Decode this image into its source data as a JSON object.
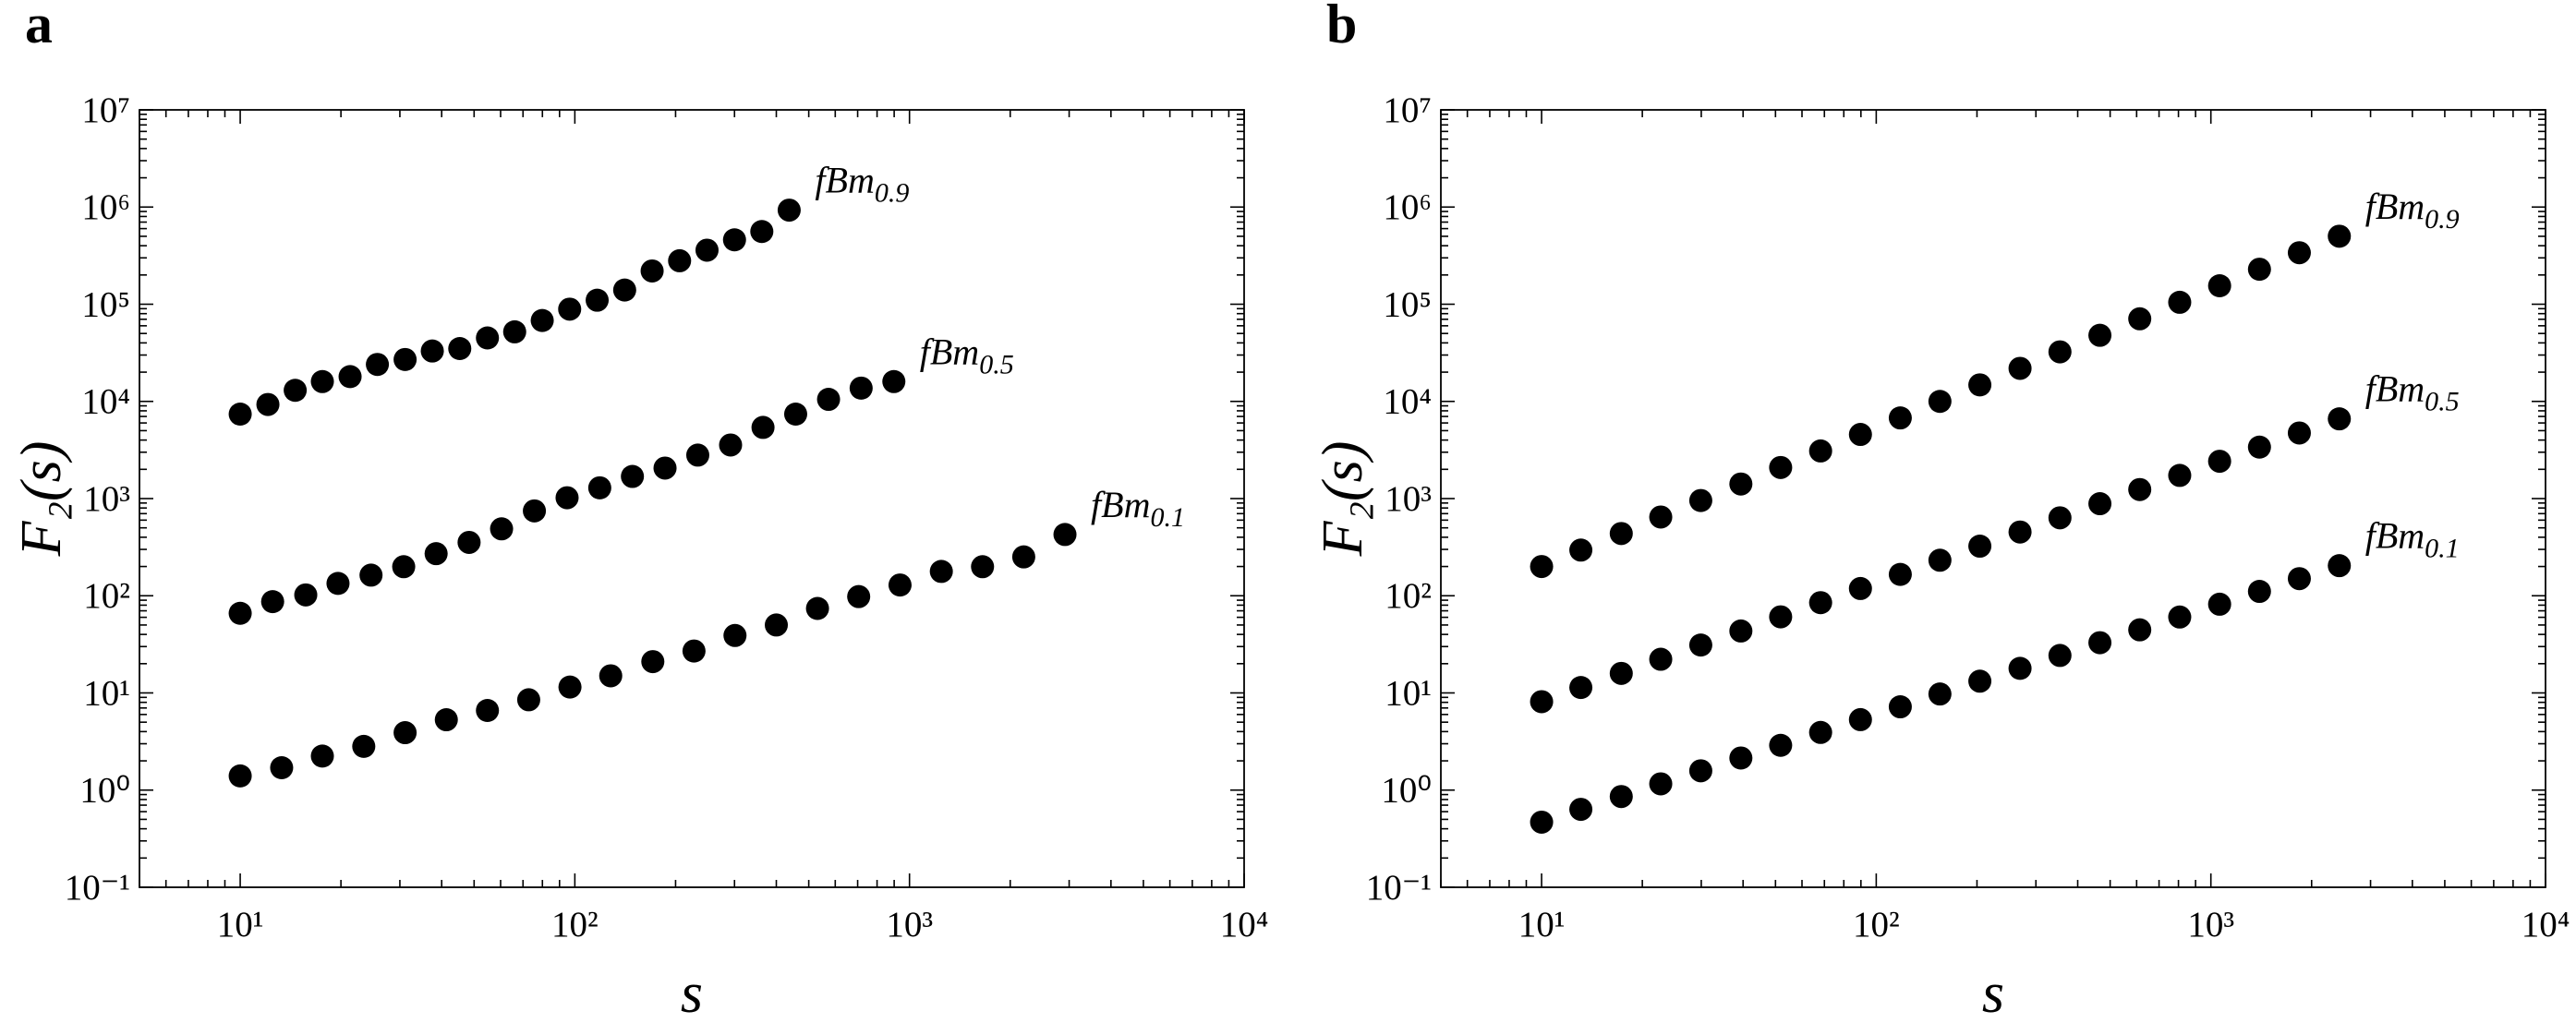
{
  "chart_data": [
    {
      "type": "scatter",
      "panel_label": "a",
      "xlabel": "s",
      "ylabel": "F₂(s)",
      "log_x": true,
      "log_y": true,
      "color": "#000000",
      "xlim": [
        5,
        10000
      ],
      "ylim": [
        0.1,
        10000000
      ],
      "xticks": [
        {
          "value": 10,
          "label": "10¹"
        },
        {
          "value": 100,
          "label": "10²"
        },
        {
          "value": 1000,
          "label": "10³"
        },
        {
          "value": 10000,
          "label": "10⁴"
        }
      ],
      "yticks": [
        {
          "value": 0.1,
          "label": "10⁻¹"
        },
        {
          "value": 1,
          "label": "10⁰"
        },
        {
          "value": 10,
          "label": "10¹"
        },
        {
          "value": 100,
          "label": "10²"
        },
        {
          "value": 1000,
          "label": "10³"
        },
        {
          "value": 10000,
          "label": "10⁴"
        },
        {
          "value": 100000,
          "label": "10⁵"
        },
        {
          "value": 1000000,
          "label": "10⁶"
        },
        {
          "value": 10000000,
          "label": "10⁷"
        }
      ],
      "series": [
        {
          "name": "fBm0.9",
          "x": [
            10,
            12.1,
            14.6,
            17.6,
            21.3,
            25.7,
            31.1,
            37.5,
            45.3,
            54.8,
            66.1,
            79.9,
            96.5,
            116.6,
            140.9,
            170.2,
            205.6,
            248.3,
            300,
            362,
            437
          ],
          "values": [
            7400,
            9300,
            13000,
            16000,
            18000,
            24000,
            27000,
            33000,
            35000,
            45000,
            52000,
            68000,
            89000,
            110000,
            140000,
            220000,
            280000,
            360000,
            460000,
            560000,
            930000
          ]
        },
        {
          "name": "fBm0.5",
          "x": [
            10,
            12.5,
            15.7,
            19.6,
            24.6,
            30.8,
            38.5,
            48.3,
            60.4,
            75.7,
            94.8,
            118.7,
            148.6,
            186,
            233,
            292,
            365,
            457,
            573,
            717,
            898
          ],
          "values": [
            66,
            87,
            102,
            134,
            163,
            199,
            271,
            354,
            488,
            747,
            1020,
            1290,
            1690,
            2060,
            2800,
            3560,
            5400,
            7400,
            10500,
            13700,
            16000
          ]
        },
        {
          "name": "fBm0.1",
          "x": [
            10,
            13.3,
            17.6,
            23.4,
            31.1,
            41.3,
            54.8,
            72.8,
            96.7,
            128,
            171,
            227,
            301,
            400,
            531,
            705,
            937,
            1245,
            1653,
            2195,
            2915
          ],
          "values": [
            1.4,
            1.7,
            2.24,
            2.82,
            3.9,
            5.3,
            6.6,
            8.5,
            11.5,
            15,
            21,
            27,
            39,
            50,
            74,
            98,
            129,
            178,
            199,
            251,
            427
          ]
        }
      ]
    },
    {
      "type": "scatter",
      "panel_label": "b",
      "xlabel": "s",
      "ylabel": "F₂(s)",
      "log_x": true,
      "log_y": true,
      "color": "#000000",
      "xlim": [
        5,
        10000
      ],
      "ylim": [
        0.1,
        10000000
      ],
      "xticks": [
        {
          "value": 10,
          "label": "10¹"
        },
        {
          "value": 100,
          "label": "10²"
        },
        {
          "value": 1000,
          "label": "10³"
        },
        {
          "value": 10000,
          "label": "10⁴"
        }
      ],
      "yticks": [
        {
          "value": 0.1,
          "label": "10⁻¹"
        },
        {
          "value": 1,
          "label": "10⁰"
        },
        {
          "value": 10,
          "label": "10¹"
        },
        {
          "value": 100,
          "label": "10²"
        },
        {
          "value": 1000,
          "label": "10³"
        },
        {
          "value": 10000,
          "label": "10⁴"
        },
        {
          "value": 100000,
          "label": "10⁵"
        },
        {
          "value": 1000000,
          "label": "10⁶"
        },
        {
          "value": 10000000,
          "label": "10⁷"
        }
      ],
      "series": [
        {
          "name": "fBm0.9",
          "x": [
            10,
            13.1,
            17.3,
            22.7,
            29.9,
            39.4,
            51.8,
            68.2,
            89.7,
            118,
            155,
            204,
            269,
            354,
            466,
            613,
            807,
            1062,
            1397,
            1838,
            2420
          ],
          "values": [
            200,
            295,
            437,
            646,
            955,
            1413,
            2089,
            3090,
            4571,
            6761,
            10000,
            14790,
            21880,
            32360,
            47860,
            70790,
            104700,
            154900,
            229100,
            338800,
            501200
          ]
        },
        {
          "name": "fBm0.5",
          "x": [
            10,
            13.1,
            17.3,
            22.7,
            29.9,
            39.4,
            51.8,
            68.2,
            89.7,
            118,
            155,
            204,
            269,
            354,
            466,
            613,
            807,
            1062,
            1397,
            1838,
            2420
          ],
          "values": [
            8.13,
            11.37,
            15.89,
            22.2,
            31.1,
            43.4,
            60.7,
            84.9,
            118.7,
            165.9,
            232,
            324,
            453,
            634,
            886,
            1239,
            1732,
            2421,
            3385,
            4732,
            6615
          ]
        },
        {
          "name": "fBm0.1",
          "x": [
            10,
            13.1,
            17.3,
            22.7,
            29.9,
            39.4,
            51.8,
            68.2,
            89.7,
            118,
            155,
            204,
            269,
            354,
            466,
            613,
            807,
            1062,
            1397,
            1838,
            2420
          ],
          "values": [
            0.468,
            0.634,
            0.859,
            1.16,
            1.58,
            2.14,
            2.89,
            3.92,
            5.31,
            7.2,
            9.75,
            13.2,
            17.9,
            24.3,
            32.9,
            44.6,
            60.4,
            81.8,
            110.9,
            150,
            204
          ]
        }
      ]
    }
  ]
}
